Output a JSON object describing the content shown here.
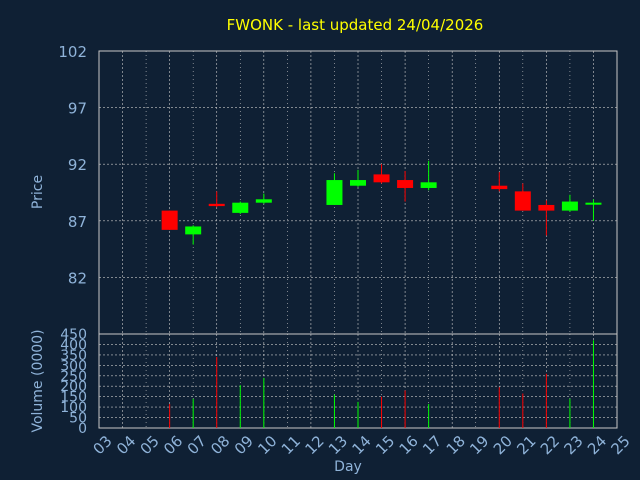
{
  "chart_data": [
    {
      "type": "candlestick",
      "title": "FWONK - last updated 24/04/2026",
      "ylabel": "Price",
      "ylim": [
        77,
        102
      ],
      "y_ticks": [
        82,
        87,
        92,
        97,
        102
      ],
      "x_days": [
        3,
        25
      ],
      "grid": true,
      "colors": {
        "up": "#00ff00",
        "down": "#ff0000",
        "grid": "#c8c8c8",
        "text": "#8fb3d9",
        "title": "#ffff00",
        "background": "#0f2034"
      },
      "candles": [
        {
          "day": 6,
          "open": 87.9,
          "close": 86.2,
          "high": 87.9,
          "low": 86.2
        },
        {
          "day": 7,
          "open": 85.8,
          "close": 86.5,
          "high": 86.6,
          "low": 84.9
        },
        {
          "day": 8,
          "open": 88.5,
          "close": 88.3,
          "high": 89.6,
          "low": 88.2
        },
        {
          "day": 9,
          "open": 87.7,
          "close": 88.6,
          "high": 88.7,
          "low": 87.6
        },
        {
          "day": 10,
          "open": 88.6,
          "close": 88.9,
          "high": 89.4,
          "low": 88.5
        },
        {
          "day": 13,
          "open": 88.4,
          "close": 90.6,
          "high": 91.2,
          "low": 88.4
        },
        {
          "day": 14,
          "open": 90.1,
          "close": 90.6,
          "high": 91.5,
          "low": 90.0
        },
        {
          "day": 15,
          "open": 91.1,
          "close": 90.4,
          "high": 92.0,
          "low": 90.3
        },
        {
          "day": 16,
          "open": 90.6,
          "close": 89.9,
          "high": 91.4,
          "low": 88.7
        },
        {
          "day": 17,
          "open": 89.9,
          "close": 90.4,
          "high": 92.3,
          "low": 89.7
        },
        {
          "day": 20,
          "open": 90.1,
          "close": 89.8,
          "high": 91.3,
          "low": 89.6
        },
        {
          "day": 21,
          "open": 89.6,
          "close": 87.9,
          "high": 90.3,
          "low": 87.9
        },
        {
          "day": 22,
          "open": 88.4,
          "close": 87.9,
          "high": 88.8,
          "low": 85.7
        },
        {
          "day": 23,
          "open": 87.9,
          "close": 88.7,
          "high": 89.3,
          "low": 87.8
        },
        {
          "day": 24,
          "open": 88.5,
          "close": 88.6,
          "high": 88.9,
          "low": 87.0
        }
      ]
    },
    {
      "type": "bar",
      "xlabel": "Day",
      "ylabel": "Volume (0000)",
      "ylim": [
        0,
        450
      ],
      "y_ticks": [
        0,
        50,
        100,
        150,
        200,
        250,
        300,
        350,
        400,
        450
      ],
      "categories": [
        "03",
        "04",
        "05",
        "06",
        "07",
        "08",
        "09",
        "10",
        "11",
        "12",
        "13",
        "14",
        "15",
        "16",
        "17",
        "18",
        "19",
        "20",
        "21",
        "22",
        "23",
        "24",
        "25"
      ],
      "bars": [
        {
          "day": 6,
          "value": 115,
          "direction": "down"
        },
        {
          "day": 7,
          "value": 140,
          "direction": "up"
        },
        {
          "day": 8,
          "value": 340,
          "direction": "down"
        },
        {
          "day": 9,
          "value": 205,
          "direction": "up"
        },
        {
          "day": 10,
          "value": 240,
          "direction": "up"
        },
        {
          "day": 13,
          "value": 160,
          "direction": "up"
        },
        {
          "day": 14,
          "value": 125,
          "direction": "up"
        },
        {
          "day": 15,
          "value": 150,
          "direction": "down"
        },
        {
          "day": 16,
          "value": 180,
          "direction": "down"
        },
        {
          "day": 17,
          "value": 115,
          "direction": "up"
        },
        {
          "day": 20,
          "value": 195,
          "direction": "down"
        },
        {
          "day": 21,
          "value": 165,
          "direction": "down"
        },
        {
          "day": 22,
          "value": 260,
          "direction": "down"
        },
        {
          "day": 23,
          "value": 140,
          "direction": "up"
        },
        {
          "day": 24,
          "value": 420,
          "direction": "up"
        }
      ]
    }
  ]
}
